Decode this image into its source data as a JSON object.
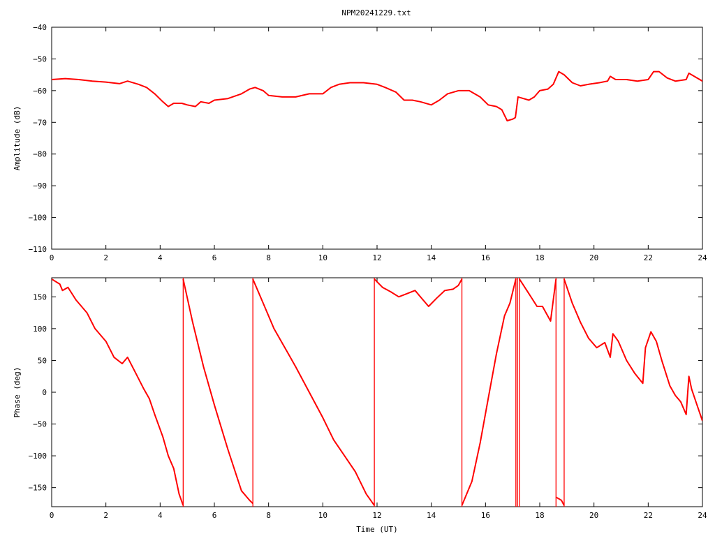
{
  "title": "NPM20241229.txt",
  "colors": {
    "trace": "#ff0000",
    "axis": "#000000",
    "background": "#ffffff"
  },
  "chart_data": [
    {
      "type": "line",
      "ylabel": "Amplitude (dB)",
      "xlabel": "",
      "xlim": [
        0,
        24
      ],
      "ylim": [
        -110,
        -40
      ],
      "x_ticks": [
        "0",
        "2",
        "4",
        "6",
        "8",
        "10",
        "12",
        "14",
        "16",
        "18",
        "20",
        "22",
        "24"
      ],
      "y_ticks": [
        "−40",
        "−50",
        "−60",
        "−70",
        "−80",
        "−90",
        "−100",
        "−110"
      ],
      "grid": false,
      "series": [
        {
          "x": [
            0,
            0.5,
            1,
            1.5,
            2,
            2.5,
            2.8,
            3.2,
            3.5,
            3.8,
            4.1,
            4.3,
            4.5,
            4.8,
            5,
            5.3,
            5.5,
            5.8,
            6,
            6.5,
            7,
            7.3,
            7.5,
            7.8,
            8,
            8.5,
            9,
            9.5,
            10,
            10.3,
            10.6,
            11,
            11.5,
            12,
            12.3,
            12.7,
            13,
            13.3,
            13.6,
            14,
            14.3,
            14.6,
            15,
            15.4,
            15.8,
            16.1,
            16.4,
            16.6,
            16.8,
            17,
            17.1,
            17.2,
            17.4,
            17.6,
            17.8,
            18,
            18.3,
            18.5,
            18.7,
            18.9,
            19.2,
            19.5,
            19.8,
            20.2,
            20.5,
            20.6,
            20.8,
            21.2,
            21.6,
            22,
            22.2,
            22.4,
            22.7,
            23,
            23.4,
            23.5,
            23.7,
            24
          ],
          "y": [
            -56.5,
            -56.2,
            -56.5,
            -57,
            -57.3,
            -57.8,
            -57,
            -58,
            -59,
            -61,
            -63.5,
            -65,
            -64,
            -64,
            -64.5,
            -65,
            -63.5,
            -64,
            -63,
            -62.5,
            -61,
            -59.5,
            -59,
            -60,
            -61.5,
            -62,
            -62,
            -61,
            -61,
            -59,
            -58,
            -57.5,
            -57.5,
            -58,
            -59,
            -60.5,
            -63,
            -63,
            -63.5,
            -64.5,
            -63,
            -61,
            -60,
            -60,
            -62,
            -64.5,
            -65,
            -66,
            -69.5,
            -69,
            -68.5,
            -62,
            -62.5,
            -63,
            -62,
            -60,
            -59.5,
            -58,
            -54,
            -55,
            -57.5,
            -58.5,
            -58,
            -57.5,
            -57,
            -55.5,
            -56.5,
            -56.5,
            -57,
            -56.5,
            -54,
            -54,
            -56,
            -57,
            -56.5,
            -54.5,
            -55.5,
            -57
          ]
        }
      ]
    },
    {
      "type": "line",
      "ylabel": "Phase (deg)",
      "xlabel": "Time (UT)",
      "xlim": [
        0,
        24
      ],
      "ylim": [
        -180,
        180
      ],
      "x_ticks": [
        "0",
        "2",
        "4",
        "6",
        "8",
        "10",
        "12",
        "14",
        "16",
        "18",
        "20",
        "22",
        "24"
      ],
      "y_ticks": [
        "150",
        "100",
        "50",
        "0",
        "−50",
        "−100",
        "−150"
      ],
      "grid": false,
      "wrap_jumps_at_x": [
        4.85,
        7.42,
        11.9,
        15.13,
        17.12,
        17.18,
        17.25,
        18.6,
        18.9
      ],
      "series": [
        {
          "segments": [
            {
              "x": [
                0,
                0.3,
                0.4,
                0.6,
                0.9,
                1.3,
                1.6,
                2,
                2.3,
                2.6,
                2.8,
                3.1,
                3.4,
                3.6,
                3.8,
                4.1,
                4.3,
                4.5,
                4.7,
                4.85
              ],
              "y": [
                178,
                170,
                160,
                165,
                145,
                125,
                100,
                80,
                55,
                45,
                55,
                30,
                5,
                -10,
                -35,
                -70,
                -100,
                -120,
                -160,
                -178
              ]
            },
            {
              "x": [
                4.85,
                5.2,
                5.6,
                6,
                6.5,
                7,
                7.3,
                7.42
              ],
              "y": [
                178,
                110,
                40,
                -20,
                -90,
                -155,
                -170,
                -175
              ]
            },
            {
              "x": [
                7.42,
                7.8,
                8.2,
                8.6,
                9,
                9.5,
                10,
                10.4,
                10.8,
                11.2,
                11.6,
                11.9
              ],
              "y": [
                178,
                140,
                100,
                70,
                40,
                0,
                -40,
                -75,
                -100,
                -125,
                -160,
                -178
              ]
            },
            {
              "x": [
                11.9,
                12.2,
                12.5,
                12.8,
                13.1,
                13.4,
                13.7,
                13.9,
                14.2,
                14.5,
                14.8,
                15,
                15.13
              ],
              "y": [
                178,
                165,
                158,
                150,
                155,
                160,
                145,
                135,
                148,
                160,
                162,
                168,
                178
              ]
            },
            {
              "x": [
                15.13,
                15.5,
                15.8,
                16.1,
                16.4,
                16.7,
                16.9,
                17.12
              ],
              "y": [
                -178,
                -140,
                -80,
                -10,
                60,
                120,
                140,
                178
              ]
            },
            {
              "x": [
                17.25,
                17.6,
                17.9,
                18.1,
                18.4,
                18.6
              ],
              "y": [
                178,
                155,
                135,
                135,
                112,
                178
              ]
            },
            {
              "x": [
                18.6,
                18.8,
                18.9
              ],
              "y": [
                -165,
                -170,
                -178
              ]
            },
            {
              "x": [
                18.9,
                19.2,
                19.5,
                19.8,
                20.1,
                20.4,
                20.6,
                20.7,
                20.9,
                21.2,
                21.5,
                21.8,
                21.9,
                22.1,
                22.3,
                22.5,
                22.8,
                23,
                23.2,
                23.4,
                23.5,
                23.6,
                23.8,
                24
              ],
              "y": [
                178,
                140,
                110,
                85,
                70,
                78,
                55,
                92,
                80,
                50,
                30,
                14,
                70,
                95,
                80,
                50,
                10,
                -5,
                -15,
                -35,
                25,
                5,
                -20,
                -45
              ]
            }
          ]
        }
      ]
    }
  ]
}
